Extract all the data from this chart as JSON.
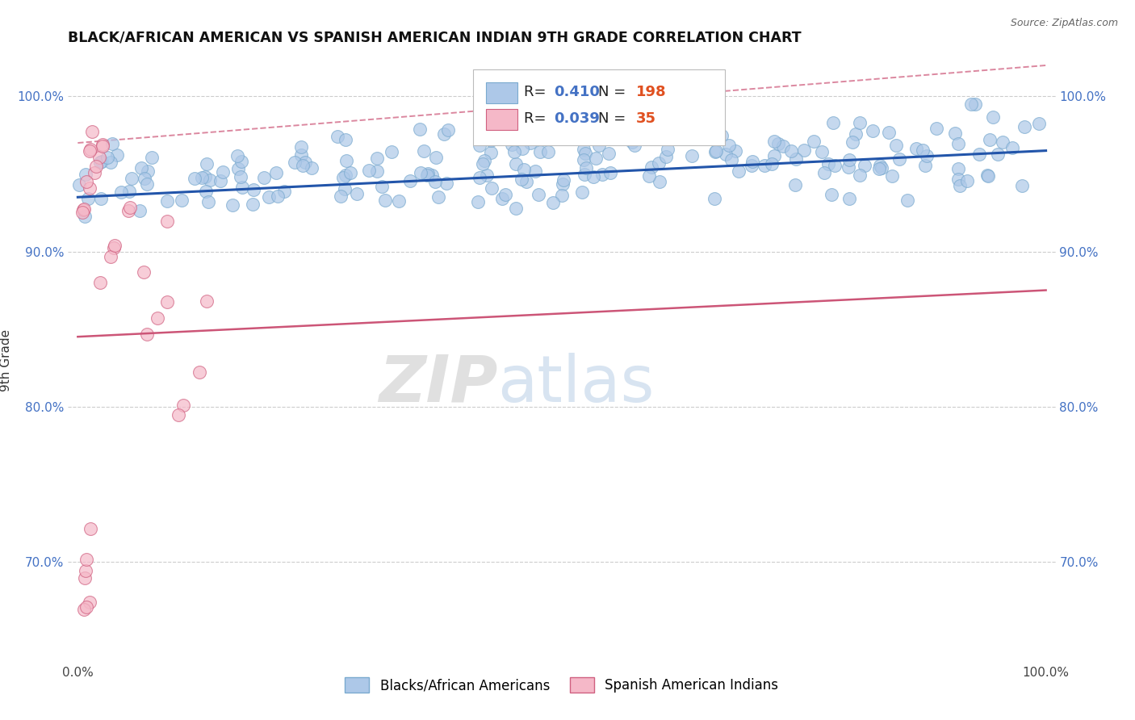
{
  "title": "BLACK/AFRICAN AMERICAN VS SPANISH AMERICAN INDIAN 9TH GRADE CORRELATION CHART",
  "source": "Source: ZipAtlas.com",
  "ylabel": "9th Grade",
  "blue_R": 0.41,
  "blue_N": 198,
  "pink_R": 0.039,
  "pink_N": 35,
  "blue_color": "#adc8e8",
  "blue_edge": "#7aaacf",
  "pink_color": "#f5b8c8",
  "pink_edge": "#d06080",
  "blue_line_color": "#2255aa",
  "pink_line_color": "#cc5577",
  "ytick_values": [
    0.7,
    0.8,
    0.9,
    1.0
  ],
  "ytick_labels": [
    "70.0%",
    "80.0%",
    "90.0%",
    "100.0%"
  ],
  "ylim_min": 0.635,
  "ylim_max": 1.025,
  "xlim_min": -0.01,
  "xlim_max": 1.01,
  "blue_trendline": [
    0.935,
    0.965
  ],
  "pink_trendline": [
    0.845,
    0.875
  ],
  "pink_dashed": [
    0.97,
    1.02
  ],
  "blue_legend_label": "Blacks/African Americans",
  "pink_legend_label": "Spanish American Indians"
}
